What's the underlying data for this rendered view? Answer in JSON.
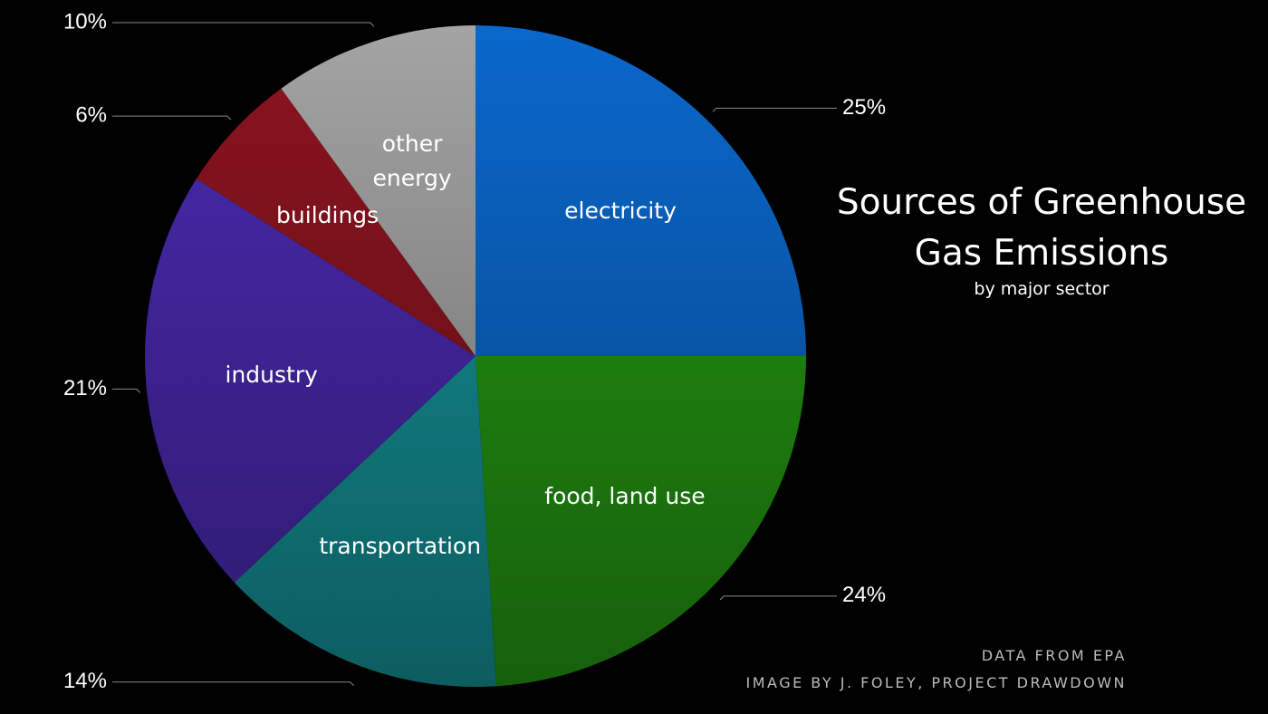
{
  "chart_data": {
    "type": "pie",
    "title": "Sources of Greenhouse Gas Emissions",
    "subtitle": "by major sector",
    "categories": [
      "electricity",
      "food, land use",
      "transportation",
      "industry",
      "buildings",
      "other energy"
    ],
    "values": [
      25,
      24,
      14,
      21,
      6,
      10
    ],
    "value_labels": [
      "25%",
      "24%",
      "14%",
      "21%",
      "6%",
      "10%"
    ],
    "colors": [
      "#0a68cc",
      "#249a12",
      "#14959a",
      "#4a2ab0",
      "#8c1420",
      "#a4a4a4"
    ],
    "notes": [
      "DATA FROM EPA",
      "IMAGE BY J. FOLEY, PROJECT DRAWDOWN"
    ]
  }
}
